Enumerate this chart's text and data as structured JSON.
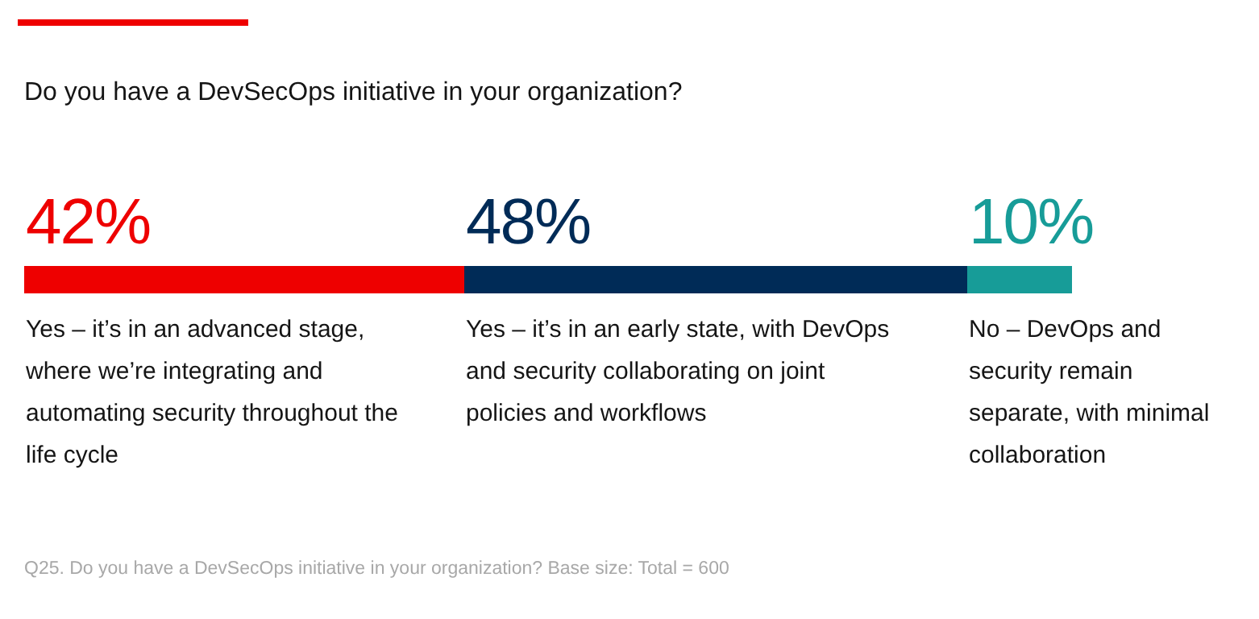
{
  "chart_data": {
    "type": "bar",
    "orientation": "horizontal",
    "stacked": true,
    "title": "Do you have a DevSecOps initiative in your organization?",
    "categories": [
      null
    ],
    "series": [
      {
        "name": "Yes – it’s in an advanced stage, where we’re integrating and automating security throughout the life cycle",
        "color": "#ee0000",
        "values": [
          42
        ],
        "value_labels": [
          "42%"
        ]
      },
      {
        "name": "Yes – it’s in an early state, with DevOps and security collaborating on joint policies and workflows",
        "color": "#002b57",
        "values": [
          48
        ],
        "value_labels": [
          "48%"
        ]
      },
      {
        "name": "No – DevOps and security remain separate, with minimal collaboration",
        "color": "#179c98",
        "values": [
          10
        ],
        "value_labels": [
          "10%"
        ]
      }
    ],
    "annotations": [
      "Q25. Do you have a DevSecOps initiative in your organization? Base size: Total = 600"
    ]
  }
}
